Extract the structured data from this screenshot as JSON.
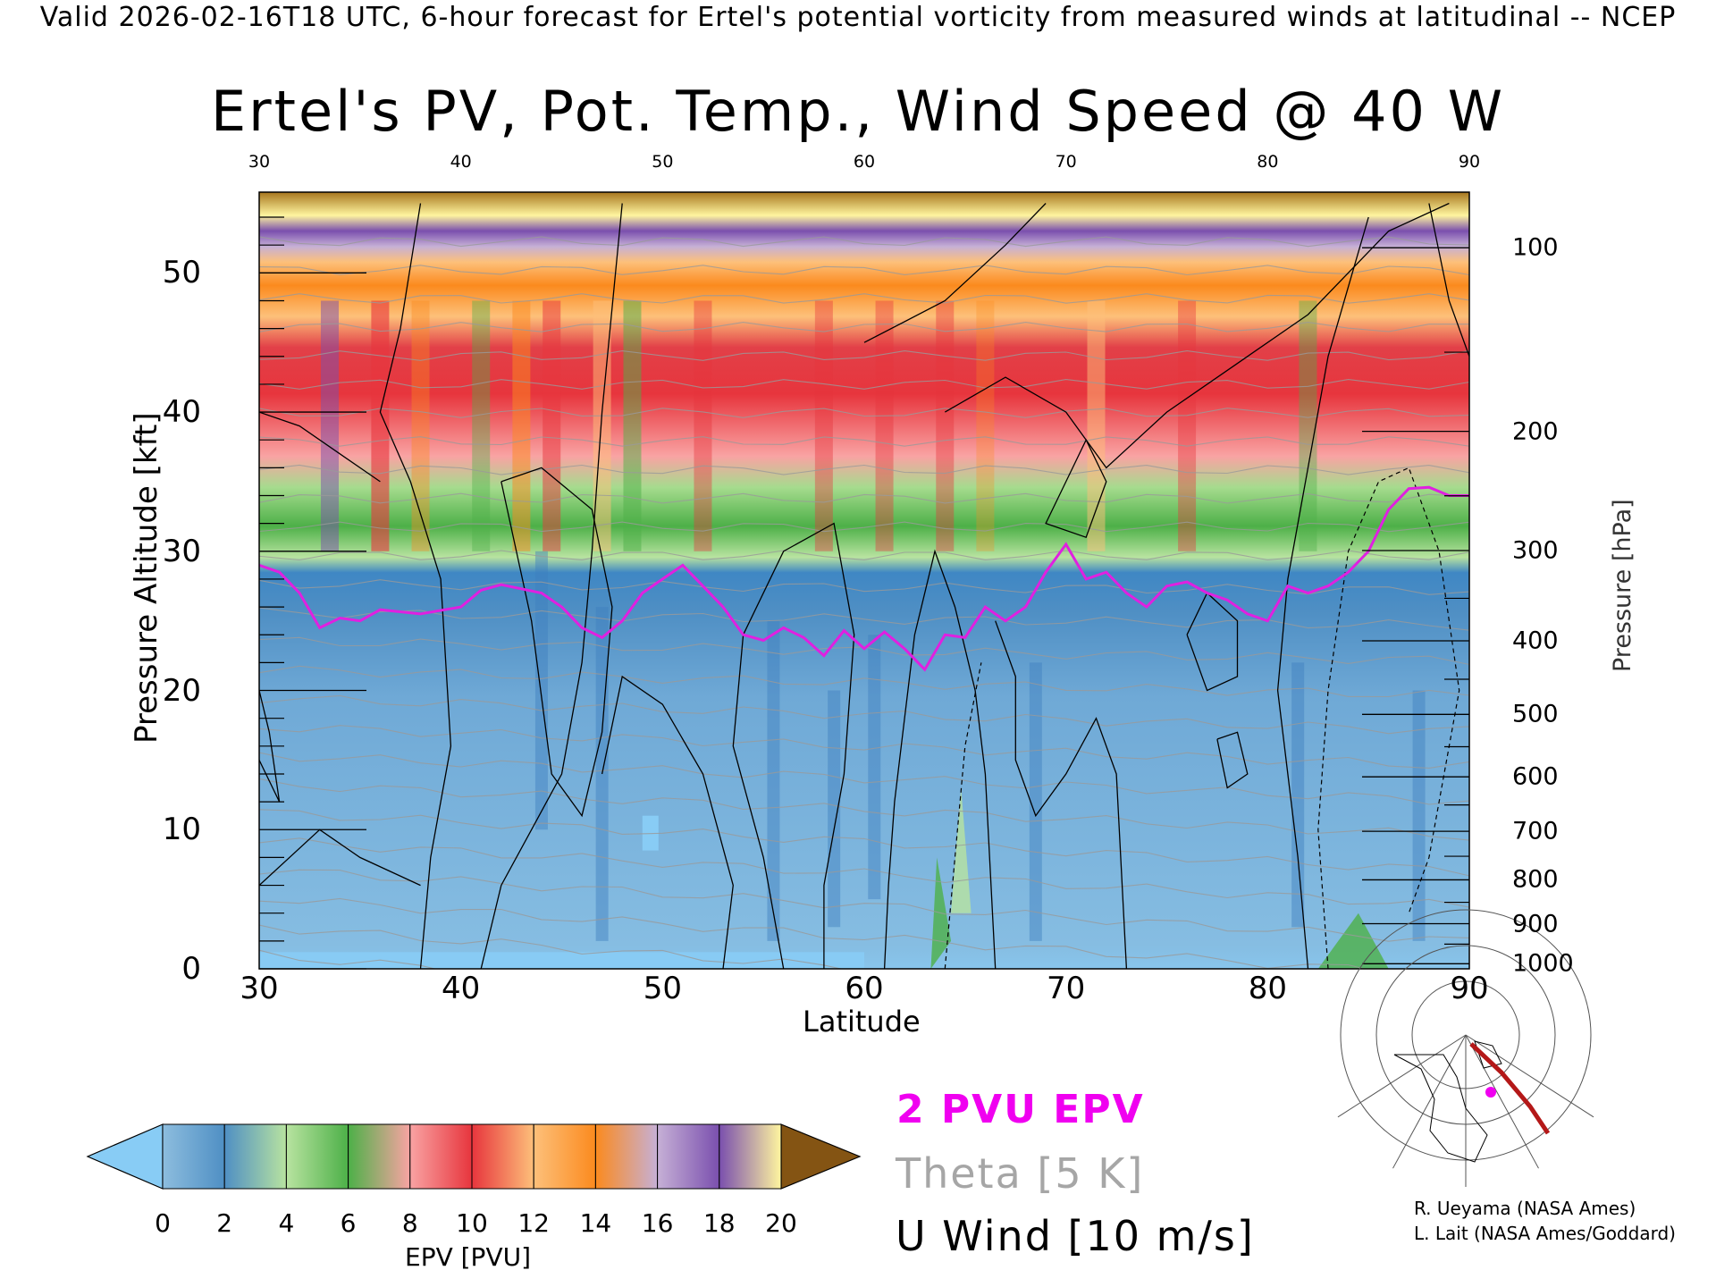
{
  "header": "Valid 2026-02-16T18 UTC, 6-hour forecast for Ertel's potential vorticity from measured winds at latitudinal -- NCEP",
  "chart_data": {
    "type": "heatmap",
    "title": "Ertel's PV, Pot. Temp., Wind Speed @ 40 W",
    "xlabel": "Latitude",
    "ylabel": "Pressure Altitude [kft]",
    "y2label": "Pressure [hPa]",
    "xlim": [
      30,
      90
    ],
    "ylim": [
      0,
      55.8
    ],
    "x_ticks": [
      30,
      40,
      50,
      60,
      70,
      80,
      90
    ],
    "top_x_ticks": [
      30,
      40,
      50,
      60,
      70,
      80,
      90
    ],
    "y_ticks": [
      0,
      10,
      20,
      30,
      40,
      50
    ],
    "pressure_ticks": [
      100,
      200,
      300,
      400,
      500,
      600,
      700,
      800,
      900,
      1000
    ],
    "tropopause_2pvu_kft": [
      [
        30,
        29.0
      ],
      [
        31,
        28.5
      ],
      [
        32,
        27.0
      ],
      [
        33,
        24.5
      ],
      [
        34,
        25.2
      ],
      [
        35,
        25.0
      ],
      [
        36,
        25.8
      ],
      [
        38,
        25.5
      ],
      [
        40,
        26.0
      ],
      [
        41,
        27.2
      ],
      [
        42,
        27.6
      ],
      [
        44,
        27.0
      ],
      [
        45,
        26.0
      ],
      [
        46,
        24.5
      ],
      [
        47,
        23.8
      ],
      [
        48,
        25.0
      ],
      [
        49,
        27.0
      ],
      [
        50,
        28.0
      ],
      [
        51,
        29.0
      ],
      [
        52,
        27.5
      ],
      [
        53,
        26.0
      ],
      [
        54,
        24.0
      ],
      [
        55,
        23.6
      ],
      [
        56,
        24.5
      ],
      [
        57,
        23.8
      ],
      [
        58,
        22.5
      ],
      [
        59,
        24.3
      ],
      [
        60,
        23.0
      ],
      [
        61,
        24.2
      ],
      [
        62,
        23.0
      ],
      [
        63,
        21.5
      ],
      [
        64,
        24.0
      ],
      [
        65,
        23.8
      ],
      [
        66,
        26.0
      ],
      [
        67,
        25.0
      ],
      [
        68,
        26.0
      ],
      [
        69,
        28.5
      ],
      [
        70,
        30.5
      ],
      [
        71,
        28.0
      ],
      [
        72,
        28.5
      ],
      [
        73,
        27.0
      ],
      [
        74,
        26.0
      ],
      [
        75,
        27.5
      ],
      [
        76,
        27.8
      ],
      [
        77,
        27.0
      ],
      [
        78,
        26.5
      ],
      [
        79,
        25.5
      ],
      [
        80,
        25.0
      ],
      [
        81,
        27.5
      ],
      [
        82,
        27.0
      ],
      [
        83,
        27.5
      ],
      [
        84,
        28.5
      ],
      [
        85,
        30.0
      ],
      [
        86,
        33.0
      ],
      [
        87,
        34.5
      ],
      [
        88,
        34.6
      ],
      [
        89,
        34.0
      ],
      [
        90,
        34.0
      ]
    ],
    "epv_colorbar": {
      "label": "EPV [PVU]",
      "ticks": [
        0,
        2,
        4,
        6,
        8,
        10,
        12,
        14,
        16,
        18,
        20
      ],
      "colors": [
        "#8dbdde",
        "#4f8fc4",
        "#b8e3a0",
        "#4db048",
        "#f9a3a3",
        "#e7353d",
        "#fdc07a",
        "#fb8a1e",
        "#c6b0d6",
        "#7a4fae",
        "#fff59f"
      ],
      "under_color": "#88ccf5",
      "over_color": "#845413"
    }
  },
  "legend": {
    "epv_contour": "2 PVU EPV",
    "theta": "Theta [5 K]",
    "wind": "U Wind [10 m/s]"
  },
  "credits": {
    "line1": "R. Ueyama (NASA Ames)",
    "line2": "L. Lait (NASA Ames/Goddard)"
  },
  "colors": {
    "tropopause": "#e020e0",
    "theta": "#9a9a9a",
    "wind": "#000000",
    "map_track": "#b41818",
    "map_marker": "#f000f0"
  }
}
